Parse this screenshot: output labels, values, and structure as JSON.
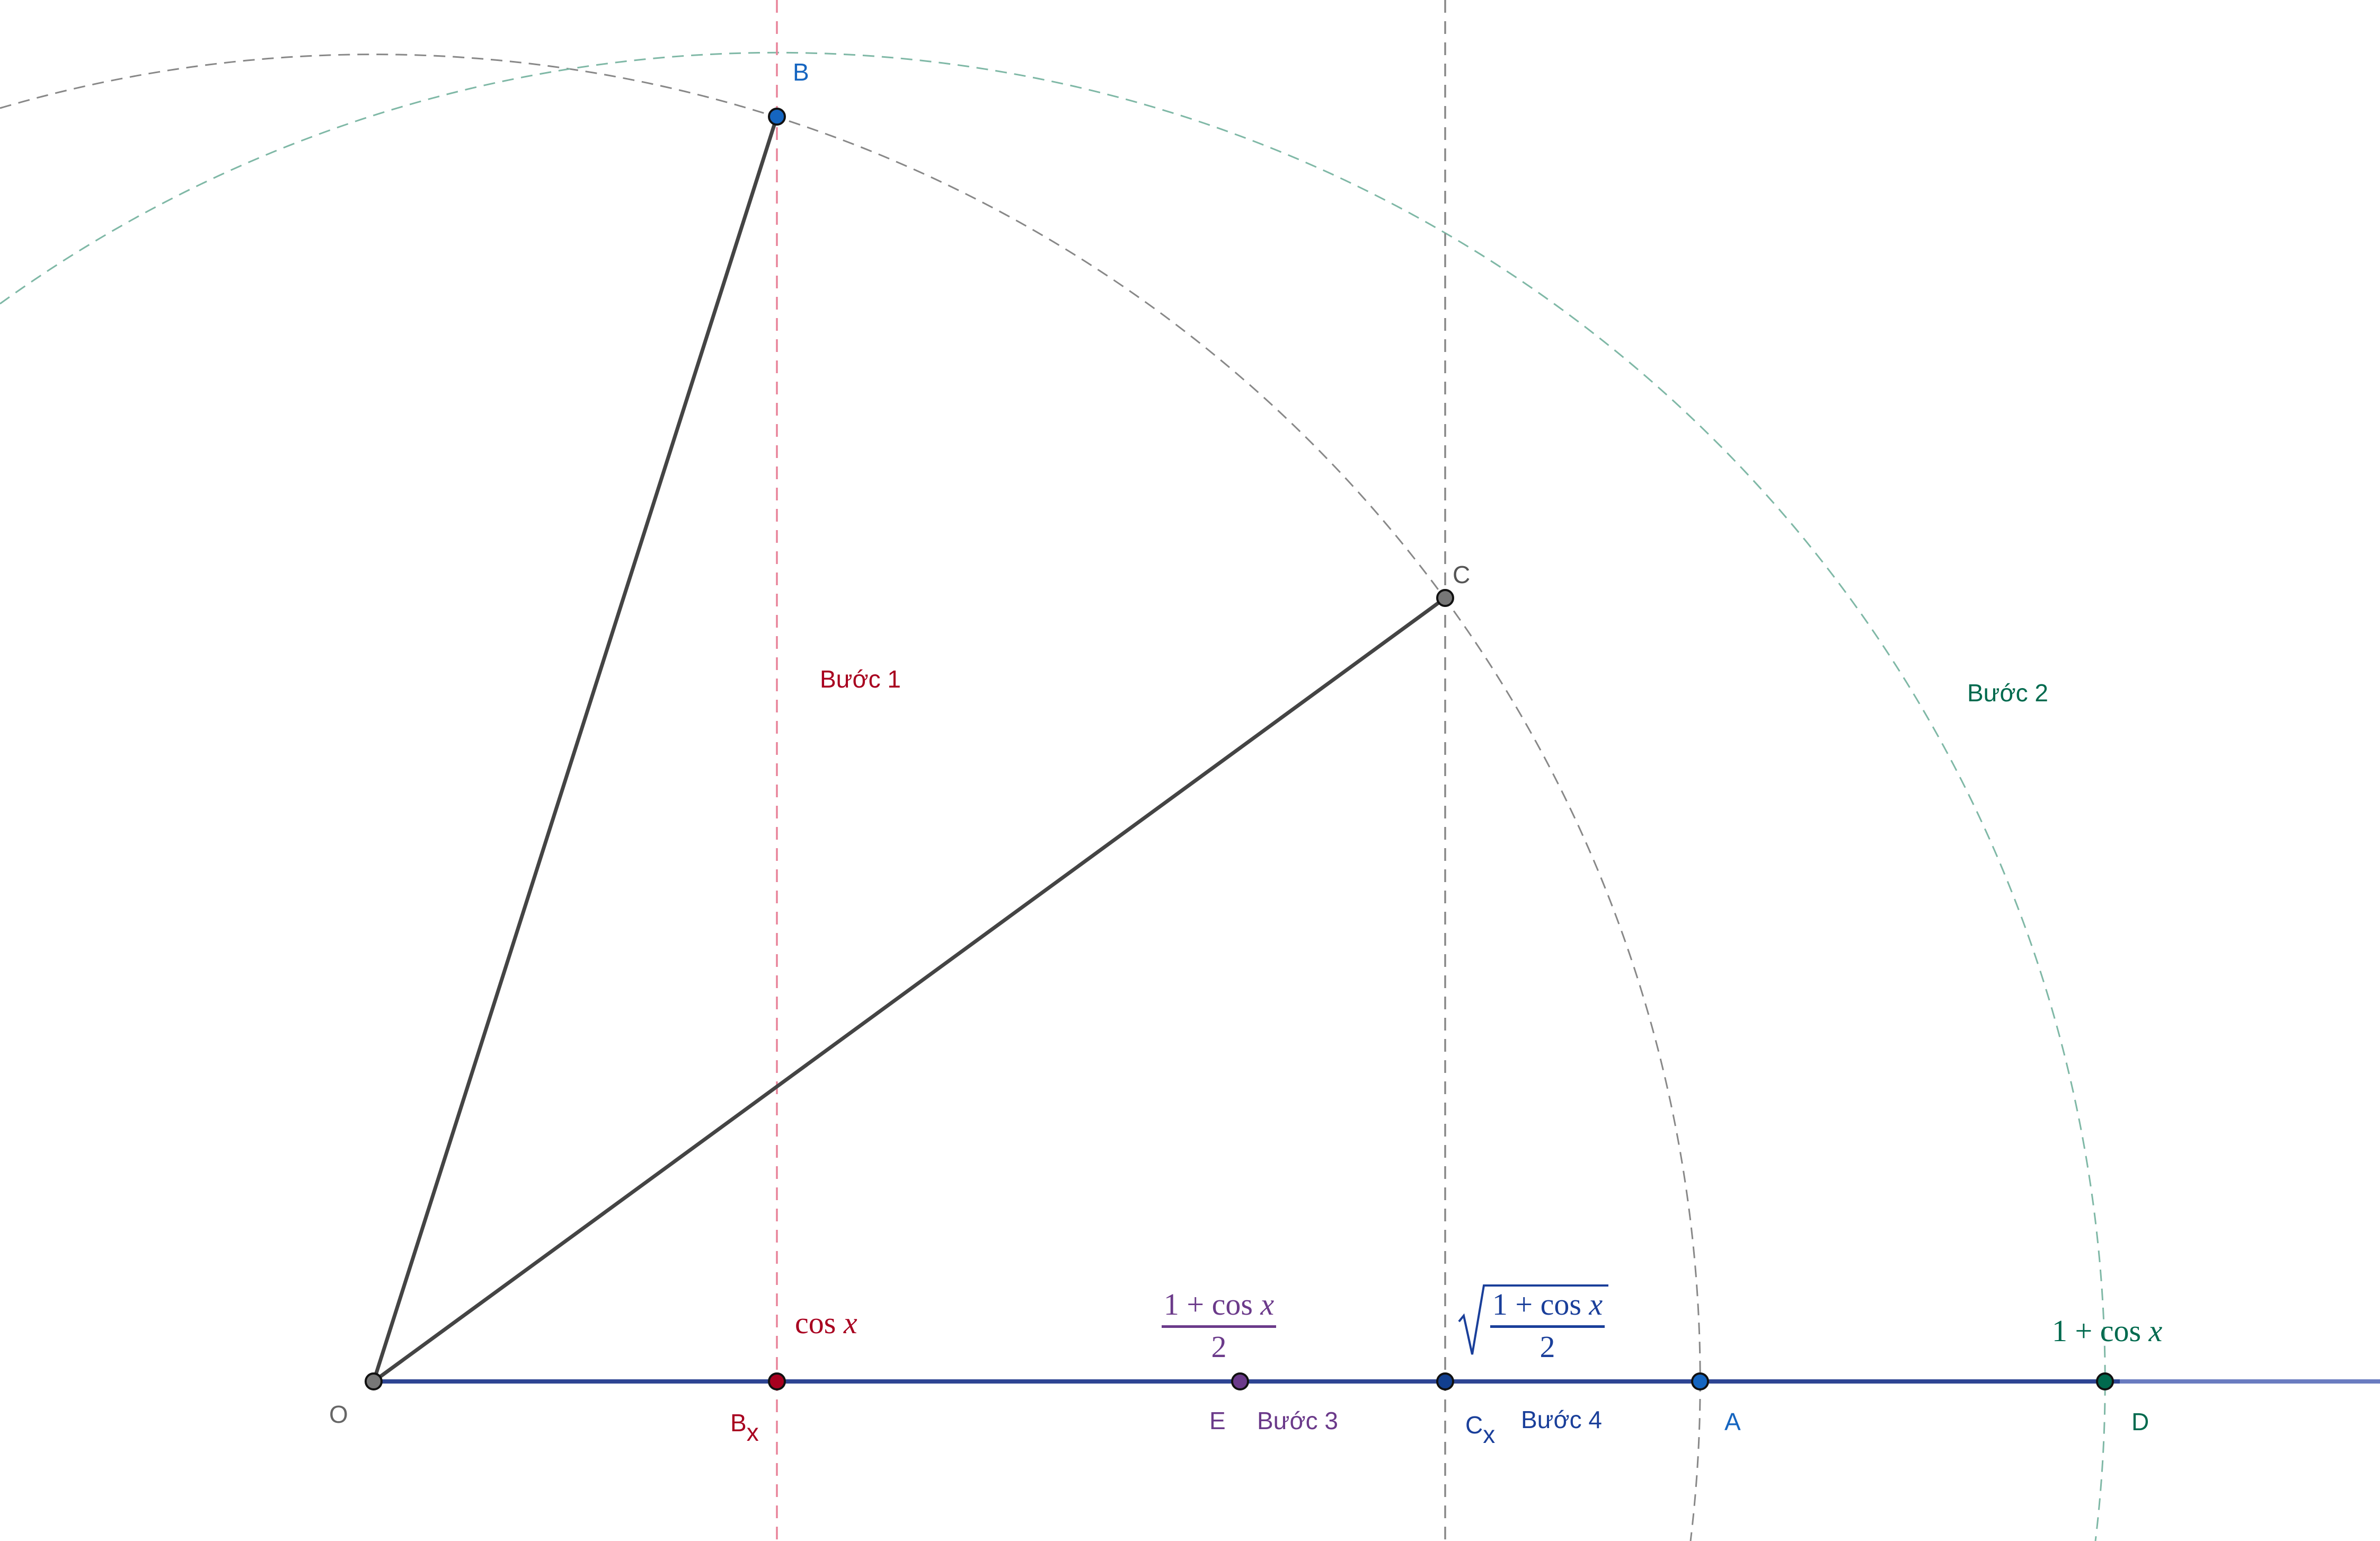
{
  "colors": {
    "segment": "#444444",
    "axis": "#2e4593",
    "gray_circle": "#888888",
    "green_circle": "#7fb8a6",
    "red_line": "#e8849a",
    "gray_line": "#888888",
    "red": "#a8001f",
    "green": "#006a4e",
    "purple": "#6b3a8a",
    "blue": "#1a3f9a",
    "point_blue": "#1565c0",
    "point_gray": "#777777"
  },
  "points": {
    "O": "O",
    "B": "B",
    "C": "C",
    "Bx_main": "B",
    "Bx_sub": "x",
    "E": "E",
    "Cx_main": "C",
    "Cx_sub": "x",
    "A": "A",
    "D": "D"
  },
  "steps": {
    "step1": "Bước 1",
    "step2": "Bước 2",
    "step3": "Bước 3",
    "step4": "Bước 4"
  },
  "math": {
    "cos": "cos",
    "x": "x",
    "one_plus": "1 + cos",
    "two": "2",
    "one_plus_cos_x": "1 + cos"
  }
}
